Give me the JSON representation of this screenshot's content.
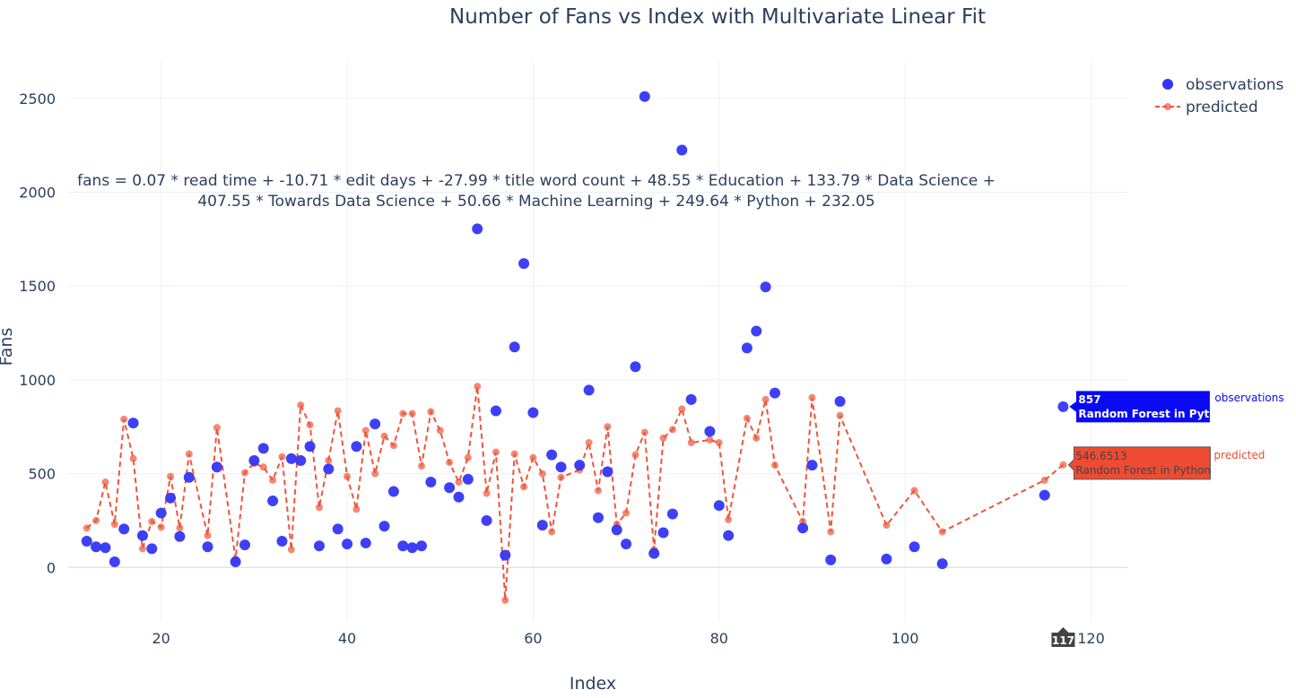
{
  "chart_data": {
    "type": "scatter",
    "title": "Number of Fans vs Index with Multivariate Linear Fit",
    "xlabel": "Index",
    "ylabel": "Fans",
    "xlim": [
      10,
      124
    ],
    "ylim": [
      -290,
      2700
    ],
    "xticks": [
      20,
      40,
      60,
      80,
      100,
      120
    ],
    "yticks": [
      0,
      500,
      1000,
      1500,
      2000,
      2500
    ],
    "grid": true,
    "legend_position": "top-right",
    "annotation_lines": [
      "fans = 0.07 * read time + -10.71 * edit days + -27.99 * title word count + 48.55 * Education + 133.79 * Data Science +",
      "407.55 * Towards Data Science + 50.66 * Machine Learning + 249.64 * Python + 232.05"
    ],
    "series": [
      {
        "name": "observations",
        "mode": "markers",
        "color": "#3336f5",
        "x": [
          12,
          13,
          14,
          15,
          16,
          17,
          18,
          19,
          20,
          21,
          22,
          23,
          25,
          26,
          28,
          29,
          30,
          31,
          32,
          33,
          34,
          35,
          36,
          37,
          38,
          39,
          40,
          41,
          42,
          43,
          44,
          45,
          46,
          47,
          48,
          49,
          51,
          52,
          53,
          54,
          55,
          56,
          57,
          58,
          59,
          60,
          61,
          62,
          63,
          65,
          66,
          67,
          68,
          69,
          70,
          71,
          72,
          73,
          74,
          75,
          76,
          77,
          79,
          80,
          81,
          83,
          84,
          85,
          86,
          89,
          90,
          92,
          93,
          98,
          101,
          104,
          115,
          117
        ],
        "y": [
          140,
          110,
          105,
          30,
          205,
          770,
          170,
          100,
          290,
          370,
          165,
          480,
          110,
          535,
          30,
          120,
          570,
          635,
          355,
          140,
          580,
          570,
          645,
          115,
          525,
          205,
          125,
          645,
          130,
          765,
          220,
          405,
          115,
          105,
          115,
          455,
          425,
          375,
          470,
          1805,
          250,
          835,
          65,
          1175,
          1620,
          825,
          225,
          600,
          535,
          545,
          945,
          265,
          510,
          200,
          125,
          1070,
          2510,
          75,
          185,
          285,
          2225,
          895,
          725,
          330,
          170,
          1170,
          1260,
          1495,
          930,
          210,
          545,
          40,
          885,
          45,
          110,
          20,
          385,
          857
        ]
      },
      {
        "name": "predicted",
        "mode": "lines+markers",
        "color": "#ef553b",
        "x": [
          12,
          13,
          14,
          15,
          16,
          17,
          18,
          19,
          20,
          21,
          22,
          23,
          25,
          26,
          28,
          29,
          30,
          31,
          32,
          33,
          34,
          35,
          36,
          37,
          38,
          39,
          40,
          41,
          42,
          43,
          44,
          45,
          46,
          47,
          48,
          49,
          50,
          51,
          52,
          53,
          54,
          55,
          56,
          57,
          58,
          59,
          60,
          61,
          62,
          63,
          65,
          66,
          67,
          68,
          69,
          70,
          71,
          72,
          73,
          74,
          75,
          76,
          77,
          79,
          80,
          81,
          83,
          84,
          85,
          86,
          89,
          90,
          92,
          93,
          98,
          101,
          104,
          115,
          117
        ],
        "y": [
          210,
          250,
          455,
          230,
          790,
          580,
          100,
          245,
          215,
          485,
          210,
          605,
          170,
          745,
          45,
          505,
          555,
          535,
          465,
          590,
          95,
          865,
          760,
          320,
          570,
          835,
          485,
          310,
          730,
          500,
          700,
          650,
          820,
          820,
          540,
          830,
          730,
          560,
          455,
          585,
          965,
          395,
          615,
          -175,
          605,
          430,
          585,
          500,
          190,
          480,
          520,
          665,
          410,
          750,
          230,
          290,
          600,
          720,
          95,
          690,
          735,
          845,
          665,
          680,
          665,
          255,
          795,
          690,
          895,
          545,
          245,
          905,
          190,
          810,
          225,
          410,
          190,
          465,
          546.6513
        ]
      }
    ],
    "hover": {
      "x_label": "117",
      "observations": {
        "value": "857",
        "text": "Random Forest in Python",
        "name": "observations"
      },
      "predicted": {
        "value": "546.6513",
        "text": "Random Forest in Python",
        "name": "predicted"
      }
    }
  }
}
